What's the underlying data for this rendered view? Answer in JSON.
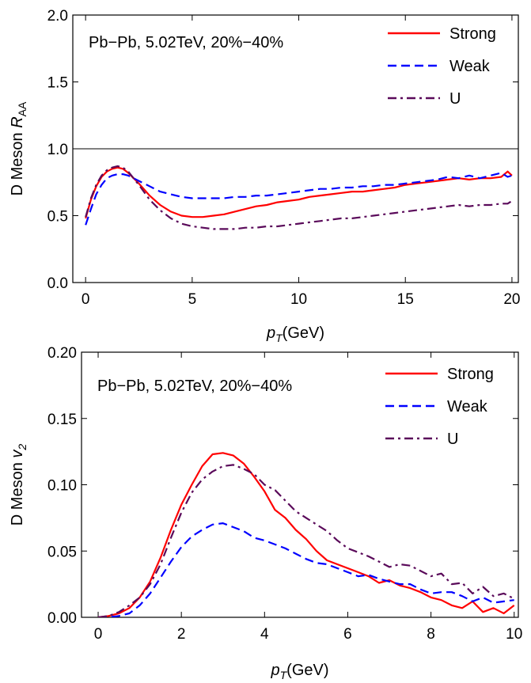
{
  "chart_data": [
    {
      "type": "line",
      "title": "",
      "annotation": "Pb−Pb, 5.02TeV, 20%−40%",
      "xlabel": "p_T(GeV)",
      "xlabel_main": "p",
      "xlabel_sub": "T",
      "xlabel_rest": "(GeV)",
      "ylabel": "D Meson R_AA",
      "ylabel_main": "D Meson ",
      "ylabel_var": "R",
      "ylabel_sub": "AA",
      "xlim": [
        -0.6,
        20.3
      ],
      "ylim": [
        0.0,
        2.0
      ],
      "xticks": [
        0,
        5,
        10,
        15,
        20
      ],
      "xtick_labels": [
        "0",
        "5",
        "10",
        "15",
        "20"
      ],
      "yticks": [
        0.0,
        0.5,
        1.0,
        1.5,
        2.0
      ],
      "ytick_labels": [
        "0.0",
        "0.5",
        "1.0",
        "1.5",
        "2.0"
      ],
      "reference_line": 1.0,
      "grid": false,
      "legend_position": "top-right",
      "series": [
        {
          "name": "Strong",
          "color": "#ff0000",
          "dash": "solid",
          "x": [
            0,
            0.25,
            0.5,
            0.75,
            1,
            1.25,
            1.5,
            1.75,
            2,
            2.5,
            3,
            3.5,
            4,
            4.5,
            5,
            5.5,
            6,
            6.5,
            7,
            7.5,
            8,
            8.5,
            9,
            9.5,
            10,
            10.5,
            11,
            11.5,
            12,
            12.5,
            13,
            13.5,
            14,
            14.5,
            15,
            15.5,
            16,
            16.5,
            17,
            17.5,
            18,
            18.5,
            19,
            19.5,
            19.8,
            20
          ],
          "y": [
            0.48,
            0.62,
            0.72,
            0.79,
            0.83,
            0.85,
            0.86,
            0.85,
            0.82,
            0.74,
            0.65,
            0.58,
            0.53,
            0.5,
            0.49,
            0.49,
            0.5,
            0.51,
            0.53,
            0.55,
            0.57,
            0.58,
            0.6,
            0.61,
            0.62,
            0.64,
            0.65,
            0.66,
            0.67,
            0.68,
            0.68,
            0.69,
            0.7,
            0.71,
            0.73,
            0.74,
            0.75,
            0.76,
            0.77,
            0.78,
            0.77,
            0.78,
            0.78,
            0.79,
            0.83,
            0.8
          ]
        },
        {
          "name": "Weak",
          "color": "#0000ff",
          "dash": "dashed",
          "x": [
            0,
            0.25,
            0.5,
            0.75,
            1,
            1.25,
            1.5,
            1.75,
            2,
            2.5,
            3,
            3.5,
            4,
            4.5,
            5,
            5.5,
            6,
            6.5,
            7,
            7.5,
            8,
            8.5,
            9,
            9.5,
            10,
            10.5,
            11,
            11.5,
            12,
            12.5,
            13,
            13.5,
            14,
            14.5,
            15,
            15.5,
            16,
            16.5,
            17,
            17.5,
            18,
            18.5,
            19,
            19.5,
            19.8,
            20
          ],
          "y": [
            0.43,
            0.55,
            0.66,
            0.73,
            0.78,
            0.8,
            0.81,
            0.81,
            0.8,
            0.76,
            0.72,
            0.68,
            0.66,
            0.64,
            0.63,
            0.63,
            0.63,
            0.63,
            0.64,
            0.64,
            0.65,
            0.65,
            0.66,
            0.67,
            0.68,
            0.69,
            0.7,
            0.7,
            0.71,
            0.71,
            0.72,
            0.72,
            0.73,
            0.73,
            0.74,
            0.75,
            0.76,
            0.77,
            0.79,
            0.78,
            0.8,
            0.78,
            0.8,
            0.82,
            0.79,
            0.8
          ]
        },
        {
          "name": "U",
          "color": "#5a0a5a",
          "dash": "dashdot",
          "x": [
            0,
            0.25,
            0.5,
            0.75,
            1,
            1.25,
            1.5,
            1.75,
            2,
            2.5,
            3,
            3.5,
            4,
            4.5,
            5,
            5.5,
            6,
            6.5,
            7,
            7.5,
            8,
            8.5,
            9,
            9.5,
            10,
            10.5,
            11,
            11.5,
            12,
            12.5,
            13,
            13.5,
            14,
            14.5,
            15,
            15.5,
            16,
            16.5,
            17,
            17.5,
            18,
            18.5,
            19,
            19.5,
            19.8,
            20
          ],
          "y": [
            0.49,
            0.63,
            0.73,
            0.8,
            0.84,
            0.86,
            0.87,
            0.86,
            0.83,
            0.73,
            0.62,
            0.54,
            0.48,
            0.44,
            0.42,
            0.41,
            0.4,
            0.4,
            0.4,
            0.41,
            0.41,
            0.42,
            0.42,
            0.43,
            0.44,
            0.45,
            0.46,
            0.47,
            0.48,
            0.48,
            0.49,
            0.5,
            0.51,
            0.52,
            0.53,
            0.54,
            0.55,
            0.56,
            0.57,
            0.58,
            0.57,
            0.58,
            0.58,
            0.59,
            0.59,
            0.61
          ]
        }
      ]
    },
    {
      "type": "line",
      "title": "",
      "annotation": "Pb−Pb, 5.02TeV, 20%−40%",
      "xlabel": "p_T(GeV)",
      "xlabel_main": "p",
      "xlabel_sub": "T",
      "xlabel_rest": "(GeV)",
      "ylabel": "D Meson v_2",
      "ylabel_main": "D Meson ",
      "ylabel_var": "v",
      "ylabel_sub": "2",
      "xlim": [
        -0.4,
        10.1
      ],
      "ylim": [
        0.0,
        0.2
      ],
      "xticks": [
        0,
        2,
        4,
        6,
        8,
        10
      ],
      "xtick_labels": [
        "0",
        "2",
        "4",
        "6",
        "8",
        "10"
      ],
      "yticks": [
        0.0,
        0.05,
        0.1,
        0.15,
        0.2
      ],
      "ytick_labels": [
        "0.00",
        "0.05",
        "0.10",
        "0.15",
        "0.20"
      ],
      "grid": false,
      "legend_position": "top-right",
      "series": [
        {
          "name": "Strong",
          "color": "#ff0000",
          "dash": "solid",
          "x": [
            0,
            0.25,
            0.5,
            0.75,
            1,
            1.25,
            1.5,
            1.75,
            2,
            2.25,
            2.5,
            2.75,
            3,
            3.25,
            3.5,
            3.75,
            4,
            4.25,
            4.5,
            4.75,
            5,
            5.25,
            5.5,
            5.75,
            6,
            6.25,
            6.5,
            6.75,
            7,
            7.25,
            7.5,
            7.75,
            8,
            8.25,
            8.5,
            8.75,
            9,
            9.25,
            9.5,
            9.75,
            10
          ],
          "y": [
            0,
            0.001,
            0.003,
            0.007,
            0.015,
            0.027,
            0.045,
            0.066,
            0.085,
            0.1,
            0.114,
            0.123,
            0.124,
            0.122,
            0.116,
            0.106,
            0.095,
            0.081,
            0.075,
            0.066,
            0.059,
            0.05,
            0.043,
            0.04,
            0.037,
            0.034,
            0.031,
            0.026,
            0.028,
            0.024,
            0.022,
            0.019,
            0.015,
            0.013,
            0.009,
            0.007,
            0.012,
            0.004,
            0.007,
            0.003,
            0.009
          ]
        },
        {
          "name": "Weak",
          "color": "#0000ff",
          "dash": "dashed",
          "x": [
            0,
            0.25,
            0.5,
            0.75,
            1,
            1.25,
            1.5,
            1.75,
            2,
            2.25,
            2.5,
            2.75,
            3,
            3.25,
            3.5,
            3.75,
            4,
            4.25,
            4.5,
            4.75,
            5,
            5.25,
            5.5,
            5.75,
            6,
            6.25,
            6.5,
            6.75,
            7,
            7.25,
            7.5,
            7.75,
            8,
            8.25,
            8.5,
            8.75,
            9,
            9.25,
            9.5,
            9.75,
            10
          ],
          "y": [
            0,
            0,
            0.001,
            0.003,
            0.009,
            0.018,
            0.03,
            0.042,
            0.053,
            0.061,
            0.066,
            0.07,
            0.071,
            0.068,
            0.065,
            0.06,
            0.058,
            0.055,
            0.052,
            0.048,
            0.044,
            0.041,
            0.04,
            0.037,
            0.034,
            0.031,
            0.032,
            0.029,
            0.027,
            0.025,
            0.025,
            0.021,
            0.018,
            0.019,
            0.019,
            0.016,
            0.012,
            0.015,
            0.011,
            0.012,
            0.013
          ]
        },
        {
          "name": "U",
          "color": "#5a0a5a",
          "dash": "dashdot",
          "x": [
            0,
            0.25,
            0.5,
            0.75,
            1,
            1.25,
            1.5,
            1.75,
            2,
            2.25,
            2.5,
            2.75,
            3,
            3.25,
            3.5,
            3.75,
            4,
            4.25,
            4.5,
            4.75,
            5,
            5.25,
            5.5,
            5.75,
            6,
            6.25,
            6.5,
            6.75,
            7,
            7.25,
            7.5,
            7.75,
            8,
            8.25,
            8.5,
            8.75,
            9,
            9.25,
            9.5,
            9.75,
            10
          ],
          "y": [
            0,
            0.001,
            0.004,
            0.009,
            0.015,
            0.025,
            0.04,
            0.06,
            0.079,
            0.094,
            0.104,
            0.11,
            0.114,
            0.115,
            0.112,
            0.108,
            0.1,
            0.096,
            0.088,
            0.08,
            0.075,
            0.07,
            0.065,
            0.058,
            0.052,
            0.049,
            0.046,
            0.042,
            0.038,
            0.04,
            0.039,
            0.035,
            0.031,
            0.033,
            0.025,
            0.026,
            0.018,
            0.023,
            0.016,
            0.018,
            0.014
          ]
        }
      ]
    }
  ]
}
